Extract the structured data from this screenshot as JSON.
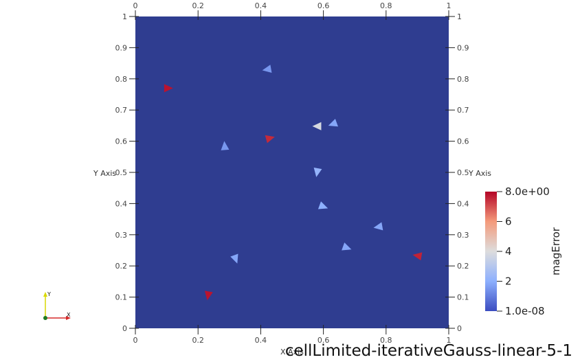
{
  "chart_data": {
    "type": "scatter",
    "title": "cellLimited-iterativeGauss-linear-5-1",
    "xlabel": "X Axis",
    "ylabel": "Y Axis",
    "xlim": [
      0,
      1
    ],
    "ylim": [
      0,
      1
    ],
    "x_ticks": [
      "0",
      "0.2",
      "0.4",
      "0.6",
      "0.8",
      "1"
    ],
    "y_ticks": [
      "0",
      "0.1",
      "0.2",
      "0.3",
      "0.4",
      "0.5",
      "0.6",
      "0.7",
      "0.8",
      "0.9",
      "1"
    ],
    "grid": false,
    "background_color": "#2f3d90",
    "colorbar": {
      "title": "magError",
      "min": 1e-08,
      "max": 8,
      "labels": [
        "8.0e+00",
        "6",
        "4",
        "2",
        "1.0e-08"
      ],
      "colors": [
        "#3b4cc0",
        "#8db0fe",
        "#dddddd",
        "#f49a7b",
        "#b40426"
      ]
    },
    "points": [
      {
        "x": 0.105,
        "y": 0.77,
        "value": 7.8,
        "angle": 0
      },
      {
        "x": 0.42,
        "y": 0.83,
        "value": 1.5,
        "angle": 190
      },
      {
        "x": 0.43,
        "y": 0.61,
        "value": 7.5,
        "angle": 15
      },
      {
        "x": 0.285,
        "y": 0.585,
        "value": 1.5,
        "angle": 95
      },
      {
        "x": 0.58,
        "y": 0.648,
        "value": 3.8,
        "angle": 180
      },
      {
        "x": 0.63,
        "y": 0.655,
        "value": 1.8,
        "angle": 200
      },
      {
        "x": 0.58,
        "y": 0.5,
        "value": 2.2,
        "angle": 260
      },
      {
        "x": 0.6,
        "y": 0.39,
        "value": 2.0,
        "angle": 340
      },
      {
        "x": 0.775,
        "y": 0.325,
        "value": 1.8,
        "angle": 190
      },
      {
        "x": 0.675,
        "y": 0.258,
        "value": 1.8,
        "angle": 340
      },
      {
        "x": 0.32,
        "y": 0.222,
        "value": 1.8,
        "angle": 290
      },
      {
        "x": 0.9,
        "y": 0.233,
        "value": 7.6,
        "angle": 170
      },
      {
        "x": 0.232,
        "y": 0.105,
        "value": 7.8,
        "angle": 260
      }
    ]
  },
  "orientation_axes": {
    "y_label": "Y",
    "x_label": "X",
    "y_color": "#d9d900",
    "x_color": "#d62828",
    "origin_color": "#1f7a1f"
  }
}
